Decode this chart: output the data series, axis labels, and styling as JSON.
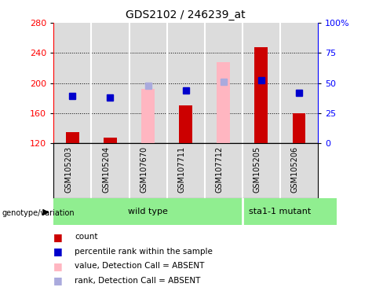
{
  "title": "GDS2102 / 246239_at",
  "samples": [
    "GSM105203",
    "GSM105204",
    "GSM107670",
    "GSM107711",
    "GSM107712",
    "GSM105205",
    "GSM105206"
  ],
  "count_values": [
    135,
    128,
    192,
    170,
    228,
    248,
    160
  ],
  "rank_values": [
    183,
    181,
    196,
    190,
    202,
    204,
    187
  ],
  "absent": [
    false,
    false,
    true,
    false,
    true,
    false,
    false
  ],
  "ylim_left": [
    120,
    280
  ],
  "ylim_right": [
    0,
    100
  ],
  "yticks_left": [
    120,
    160,
    200,
    240,
    280
  ],
  "yticks_right": [
    0,
    25,
    50,
    75,
    100
  ],
  "wild_type_count": 5,
  "sta1_count": 2,
  "bar_color_present": "#CC0000",
  "bar_color_absent": "#FFB6C1",
  "rank_color_present": "#0000CC",
  "rank_color_absent": "#AAAADD",
  "bar_width": 0.35,
  "rank_marker_size": 6,
  "col_bg_color": "#DCDCDC",
  "plot_bg": "#FFFFFF",
  "group_color": "#90EE90",
  "title_fontsize": 10,
  "tick_fontsize": 8,
  "label_fontsize": 7,
  "legend_fontsize": 7.5,
  "group_fontsize": 8
}
